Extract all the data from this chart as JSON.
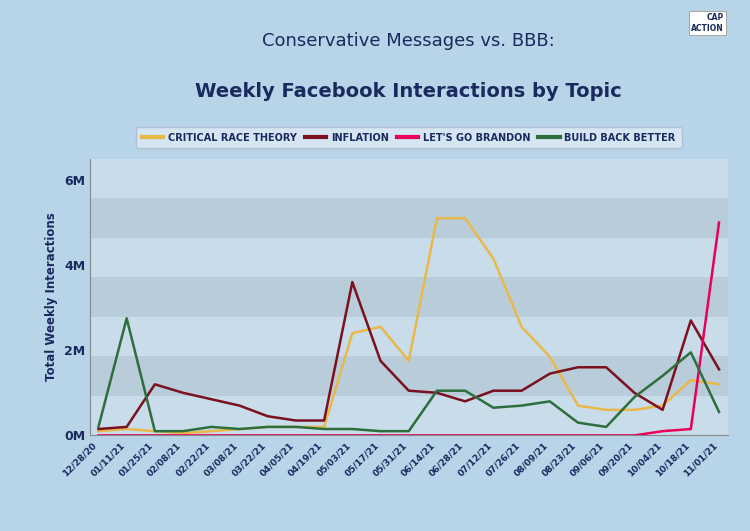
{
  "title_line1": "Conservative Messages vs. BBB:",
  "title_line2": "Weekly Facebook Interactions by Topic",
  "background_color": "#b8d4e8",
  "plot_bg_stripes": [
    "#c8dde9",
    "#b8cdd9"
  ],
  "ylabel": "Total Weekly Interactions",
  "ylim": [
    0,
    6500000
  ],
  "yticks": [
    0,
    2000000,
    4000000,
    6000000
  ],
  "ytick_labels": [
    "0M",
    "2M",
    "4M",
    "6M"
  ],
  "x_labels": [
    "12/28/20",
    "01/11/21",
    "01/25/21",
    "02/08/21",
    "02/22/21",
    "03/08/21",
    "03/22/21",
    "04/05/21",
    "04/19/21",
    "05/03/21",
    "05/17/21",
    "05/31/21",
    "06/14/21",
    "06/28/21",
    "07/12/21",
    "07/26/21",
    "08/09/21",
    "08/23/21",
    "09/06/21",
    "09/20/21",
    "10/04/21",
    "10/18/21",
    "11/01/21"
  ],
  "series": {
    "Critical Race Theory": {
      "color": "#e8b84b",
      "linewidth": 1.8,
      "values": [
        100000,
        150000,
        100000,
        50000,
        100000,
        150000,
        200000,
        200000,
        200000,
        2400000,
        2550000,
        1750000,
        5100000,
        5100000,
        4150000,
        2550000,
        1850000,
        700000,
        600000,
        600000,
        700000,
        1300000,
        1200000
      ]
    },
    "Inflation": {
      "color": "#7a1020",
      "linewidth": 1.8,
      "values": [
        150000,
        200000,
        1200000,
        1000000,
        850000,
        700000,
        450000,
        350000,
        350000,
        3600000,
        1750000,
        1050000,
        1000000,
        800000,
        1050000,
        1050000,
        1450000,
        1600000,
        1600000,
        1000000,
        600000,
        2700000,
        1550000
      ]
    },
    "Let's Go Brandon": {
      "color": "#e8005a",
      "linewidth": 1.8,
      "values": [
        0,
        0,
        0,
        0,
        0,
        0,
        0,
        0,
        0,
        0,
        0,
        0,
        0,
        0,
        0,
        0,
        0,
        0,
        0,
        0,
        100000,
        150000,
        5000000
      ]
    },
    "Build Back Better": {
      "color": "#2e6e3e",
      "linewidth": 1.8,
      "values": [
        200000,
        2750000,
        100000,
        100000,
        200000,
        150000,
        200000,
        200000,
        150000,
        150000,
        100000,
        100000,
        1050000,
        1050000,
        650000,
        700000,
        800000,
        300000,
        200000,
        900000,
        1400000,
        1950000,
        550000
      ]
    }
  },
  "legend_order": [
    "Critical Race Theory",
    "Inflation",
    "Let's Go Brandon",
    "Build Back Better"
  ],
  "title_color": "#1a2a5e",
  "axis_color": "#555555",
  "tick_color": "#1a2a5e",
  "legend_bg": "#ddeaf5",
  "legend_border": "#aabbcc"
}
